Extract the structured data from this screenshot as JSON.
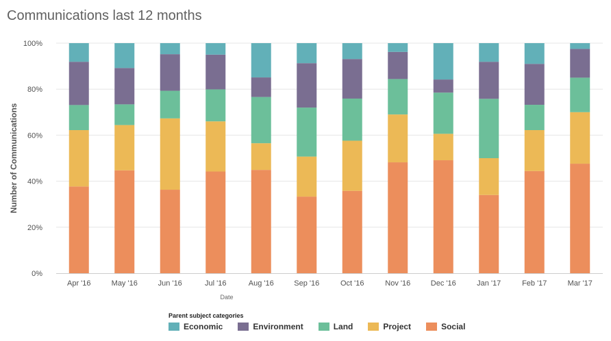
{
  "title": "Communications last 12 months",
  "chart_data": {
    "type": "bar",
    "stacked": "percent",
    "title": "Communications last 12 months",
    "xlabel": "Date",
    "ylabel": "Number of Communications",
    "ylim": [
      0,
      100
    ],
    "yticks": [
      "0%",
      "20%",
      "40%",
      "60%",
      "80%",
      "100%"
    ],
    "categories": [
      "Apr '16",
      "May '16",
      "Jun '16",
      "Jul '16",
      "Aug '16",
      "Sep '16",
      "Oct '16",
      "Nov '16",
      "Dec '16",
      "Jan '17",
      "Feb '17",
      "Mar '17"
    ],
    "legend_title": "Parent subject categories",
    "series": [
      {
        "name": "Social",
        "color": "#ec8e5c",
        "values": [
          37.7,
          44.7,
          36.3,
          44.2,
          44.9,
          33.3,
          35.8,
          48.2,
          49.1,
          34.0,
          44.4,
          47.6
        ]
      },
      {
        "name": "Project",
        "color": "#ecb956",
        "values": [
          24.5,
          19.7,
          31.0,
          21.8,
          11.6,
          17.4,
          21.8,
          20.8,
          11.5,
          16.0,
          17.8,
          22.4
        ]
      },
      {
        "name": "Land",
        "color": "#6cbf9a",
        "values": [
          10.9,
          9.0,
          12.0,
          13.9,
          20.1,
          21.3,
          18.3,
          15.4,
          17.9,
          25.8,
          11.0,
          15.0
        ]
      },
      {
        "name": "Environment",
        "color": "#7a6e91",
        "values": [
          18.8,
          15.8,
          15.9,
          15.1,
          8.5,
          19.3,
          17.2,
          11.8,
          5.7,
          16.1,
          17.8,
          12.5
        ]
      },
      {
        "name": "Economic",
        "color": "#62b0b8",
        "values": [
          8.1,
          10.8,
          4.8,
          5.0,
          14.9,
          8.7,
          6.9,
          3.8,
          15.8,
          8.1,
          9.0,
          2.5
        ]
      }
    ],
    "legend": [
      {
        "name": "Economic",
        "color": "#62b0b8"
      },
      {
        "name": "Environment",
        "color": "#7a6e91"
      },
      {
        "name": "Land",
        "color": "#6cbf9a"
      },
      {
        "name": "Project",
        "color": "#ecb956"
      },
      {
        "name": "Social",
        "color": "#ec8e5c"
      }
    ]
  }
}
